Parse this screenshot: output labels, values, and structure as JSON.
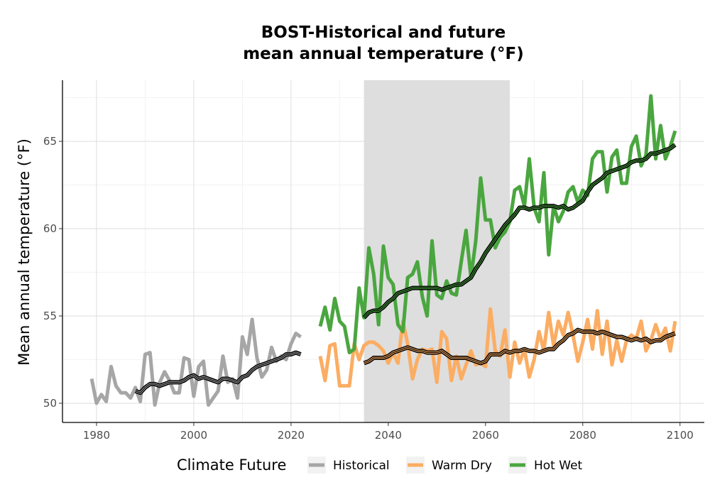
{
  "chart_data": {
    "type": "line",
    "title": "BOST-Historical and future\nmean annual temperature (°F)",
    "xlabel": "",
    "ylabel": "Mean annual temperature (°F)",
    "xlim": [
      1973,
      2105
    ],
    "ylim": [
      48.9,
      68.5
    ],
    "x_ticks": [
      1980,
      2000,
      2020,
      2040,
      2060,
      2080,
      2100
    ],
    "y_ticks": [
      50,
      55,
      60,
      65
    ],
    "grid": true,
    "shaded_period": [
      2035,
      2065
    ],
    "legend": {
      "title": "Climate Future",
      "position": "bottom",
      "entries": [
        "Historical",
        "Warm Dry",
        "Hot Wet"
      ]
    },
    "colors": {
      "Historical": "#a6a6a6",
      "Warm Dry": "#fbad63",
      "Hot Wet": "#4aa63f",
      "smoothed": "#000000",
      "shade": "#dcdcdc"
    },
    "series": [
      {
        "name": "Historical",
        "x": [
          1979,
          1980,
          1981,
          1982,
          1983,
          1984,
          1985,
          1986,
          1987,
          1988,
          1989,
          1990,
          1991,
          1992,
          1993,
          1994,
          1995,
          1996,
          1997,
          1998,
          1999,
          2000,
          2001,
          2002,
          2003,
          2004,
          2005,
          2006,
          2007,
          2008,
          2009,
          2010,
          2011,
          2012,
          2013,
          2014,
          2015,
          2016,
          2017,
          2018,
          2019,
          2020,
          2021,
          2022
        ],
        "values": [
          51.4,
          50.0,
          50.5,
          50.1,
          52.1,
          51.0,
          50.6,
          50.6,
          50.3,
          50.9,
          50.1,
          52.8,
          52.9,
          49.9,
          51.2,
          51.8,
          51.3,
          50.6,
          50.6,
          52.6,
          52.5,
          50.4,
          52.1,
          52.4,
          49.9,
          50.3,
          50.7,
          52.7,
          51.2,
          51.4,
          50.3,
          53.8,
          52.8,
          54.8,
          52.6,
          51.5,
          51.9,
          53.2,
          52.4,
          52.7,
          52.5,
          53.4,
          54.0,
          53.8
        ]
      },
      {
        "name": "Historical (smoothed)",
        "x": [
          1988,
          1989,
          1990,
          1991,
          1992,
          1993,
          1994,
          1995,
          1996,
          1997,
          1998,
          1999,
          2000,
          2001,
          2002,
          2003,
          2004,
          2005,
          2006,
          2007,
          2008,
          2009,
          2010,
          2011,
          2012,
          2013,
          2014,
          2015,
          2016,
          2017,
          2018,
          2019,
          2020,
          2021,
          2022
        ],
        "values": [
          50.7,
          50.6,
          50.9,
          51.1,
          51.1,
          51.0,
          51.1,
          51.2,
          51.2,
          51.2,
          51.3,
          51.5,
          51.6,
          51.4,
          51.5,
          51.4,
          51.3,
          51.2,
          51.4,
          51.4,
          51.3,
          51.2,
          51.5,
          51.6,
          51.9,
          52.1,
          52.2,
          52.3,
          52.4,
          52.5,
          52.6,
          52.8,
          52.8,
          52.9,
          52.8
        ]
      },
      {
        "name": "Warm Dry",
        "x": [
          2026,
          2027,
          2028,
          2029,
          2030,
          2031,
          2032,
          2033,
          2034,
          2035,
          2036,
          2037,
          2038,
          2039,
          2040,
          2041,
          2042,
          2043,
          2044,
          2045,
          2046,
          2047,
          2048,
          2049,
          2050,
          2051,
          2052,
          2053,
          2054,
          2055,
          2056,
          2057,
          2058,
          2059,
          2060,
          2061,
          2062,
          2063,
          2064,
          2065,
          2066,
          2067,
          2068,
          2069,
          2070,
          2071,
          2072,
          2073,
          2074,
          2075,
          2076,
          2077,
          2078,
          2079,
          2080,
          2081,
          2082,
          2083,
          2084,
          2085,
          2086,
          2087,
          2088,
          2089,
          2090,
          2091,
          2092,
          2093,
          2094,
          2095,
          2096,
          2097,
          2098,
          2099
        ],
        "values": [
          52.7,
          51.3,
          53.3,
          53.4,
          51.0,
          51.0,
          51.0,
          53.4,
          52.5,
          53.3,
          53.5,
          53.5,
          53.3,
          53.0,
          52.3,
          52.9,
          52.3,
          54.7,
          53.4,
          51.4,
          52.5,
          53.1,
          53.0,
          53.1,
          51.2,
          54.1,
          53.7,
          51.3,
          52.7,
          51.4,
          52.2,
          53.0,
          52.2,
          52.3,
          52.1,
          55.4,
          53.0,
          52.7,
          54.2,
          51.5,
          53.5,
          52.3,
          53.1,
          51.5,
          52.5,
          54.1,
          53.0,
          55.2,
          53.3,
          54.7,
          53.9,
          55.2,
          53.9,
          52.4,
          53.5,
          54.8,
          53.1,
          55.3,
          52.8,
          54.7,
          52.2,
          53.6,
          52.4,
          53.6,
          53.9,
          53.7,
          54.7,
          53.0,
          53.6,
          54.5,
          53.7,
          54.3,
          53.0,
          54.7
        ]
      },
      {
        "name": "Warm Dry (smoothed)",
        "x": [
          2035,
          2036,
          2037,
          2038,
          2039,
          2040,
          2041,
          2042,
          2043,
          2044,
          2045,
          2046,
          2047,
          2048,
          2049,
          2050,
          2051,
          2052,
          2053,
          2054,
          2055,
          2056,
          2057,
          2058,
          2059,
          2060,
          2061,
          2062,
          2063,
          2064,
          2065,
          2066,
          2067,
          2068,
          2069,
          2070,
          2071,
          2072,
          2073,
          2074,
          2075,
          2076,
          2077,
          2078,
          2079,
          2080,
          2081,
          2082,
          2083,
          2084,
          2085,
          2086,
          2087,
          2088,
          2089,
          2090,
          2091,
          2092,
          2093,
          2094,
          2095,
          2096,
          2097,
          2098,
          2099
        ],
        "values": [
          52.3,
          52.4,
          52.6,
          52.6,
          52.6,
          52.7,
          52.9,
          53.0,
          53.1,
          53.2,
          53.1,
          53.0,
          53.0,
          52.9,
          52.9,
          52.9,
          53.0,
          52.8,
          52.6,
          52.6,
          52.6,
          52.6,
          52.5,
          52.4,
          52.3,
          52.4,
          52.8,
          52.8,
          52.8,
          53.0,
          52.9,
          53.0,
          53.0,
          53.1,
          53.0,
          53.0,
          52.9,
          53.0,
          53.1,
          53.1,
          53.4,
          53.6,
          53.9,
          54.0,
          54.2,
          54.1,
          54.1,
          54.1,
          54.0,
          54.1,
          54.0,
          53.9,
          53.8,
          53.8,
          53.7,
          53.6,
          53.7,
          53.6,
          53.7,
          53.5,
          53.6,
          53.6,
          53.8,
          53.9,
          54.0
        ]
      },
      {
        "name": "Hot Wet",
        "x": [
          2026,
          2027,
          2028,
          2029,
          2030,
          2031,
          2032,
          2033,
          2034,
          2035,
          2036,
          2037,
          2038,
          2039,
          2040,
          2041,
          2042,
          2043,
          2044,
          2045,
          2046,
          2047,
          2048,
          2049,
          2050,
          2051,
          2052,
          2053,
          2054,
          2055,
          2056,
          2057,
          2058,
          2059,
          2060,
          2061,
          2062,
          2063,
          2064,
          2065,
          2066,
          2067,
          2068,
          2069,
          2070,
          2071,
          2072,
          2073,
          2074,
          2075,
          2076,
          2077,
          2078,
          2079,
          2080,
          2081,
          2082,
          2083,
          2084,
          2085,
          2086,
          2087,
          2088,
          2089,
          2090,
          2091,
          2092,
          2093,
          2094,
          2095,
          2096,
          2097,
          2098,
          2099
        ],
        "values": [
          54.4,
          55.5,
          54.2,
          56.0,
          54.7,
          54.4,
          52.9,
          53.1,
          56.6,
          54.9,
          58.9,
          57.4,
          54.5,
          59.0,
          57.2,
          56.8,
          54.5,
          54.1,
          57.2,
          57.4,
          58.1,
          56.1,
          55.0,
          59.3,
          56.2,
          56.0,
          57.0,
          56.3,
          56.2,
          58.1,
          59.9,
          57.2,
          59.3,
          62.9,
          60.5,
          60.5,
          58.9,
          59.5,
          59.8,
          60.4,
          62.2,
          62.4,
          61.3,
          64.0,
          61.2,
          60.4,
          63.2,
          58.5,
          61.3,
          60.4,
          61.0,
          62.1,
          62.4,
          61.5,
          62.2,
          61.9,
          64.0,
          64.4,
          64.4,
          62.1,
          64.1,
          64.5,
          62.6,
          62.6,
          64.7,
          65.3,
          63.6,
          64.2,
          67.6,
          64.0,
          65.9,
          64.0,
          64.7,
          65.6
        ]
      },
      {
        "name": "Hot Wet (smoothed)",
        "x": [
          2035,
          2036,
          2037,
          2038,
          2039,
          2040,
          2041,
          2042,
          2043,
          2044,
          2045,
          2046,
          2047,
          2048,
          2049,
          2050,
          2051,
          2052,
          2053,
          2054,
          2055,
          2056,
          2057,
          2058,
          2059,
          2060,
          2061,
          2062,
          2063,
          2064,
          2065,
          2066,
          2067,
          2068,
          2069,
          2070,
          2071,
          2072,
          2073,
          2074,
          2075,
          2076,
          2077,
          2078,
          2079,
          2080,
          2081,
          2082,
          2083,
          2084,
          2085,
          2086,
          2087,
          2088,
          2089,
          2090,
          2091,
          2092,
          2093,
          2094,
          2095,
          2096,
          2097,
          2098,
          2099
        ],
        "values": [
          54.9,
          55.2,
          55.3,
          55.3,
          55.5,
          55.8,
          56.0,
          56.3,
          56.4,
          56.5,
          56.6,
          56.6,
          56.6,
          56.6,
          56.6,
          56.6,
          56.5,
          56.6,
          56.7,
          56.8,
          56.8,
          57.0,
          57.2,
          57.7,
          58.1,
          58.6,
          59.0,
          59.4,
          59.8,
          60.2,
          60.5,
          60.8,
          61.2,
          61.2,
          61.1,
          61.2,
          61.2,
          61.3,
          61.3,
          61.3,
          61.2,
          61.3,
          61.1,
          61.2,
          61.4,
          61.6,
          62.1,
          62.5,
          62.7,
          62.9,
          63.2,
          63.3,
          63.4,
          63.5,
          63.6,
          63.8,
          63.9,
          63.9,
          64.0,
          64.3,
          64.3,
          64.4,
          64.5,
          64.6,
          64.8
        ]
      }
    ]
  }
}
